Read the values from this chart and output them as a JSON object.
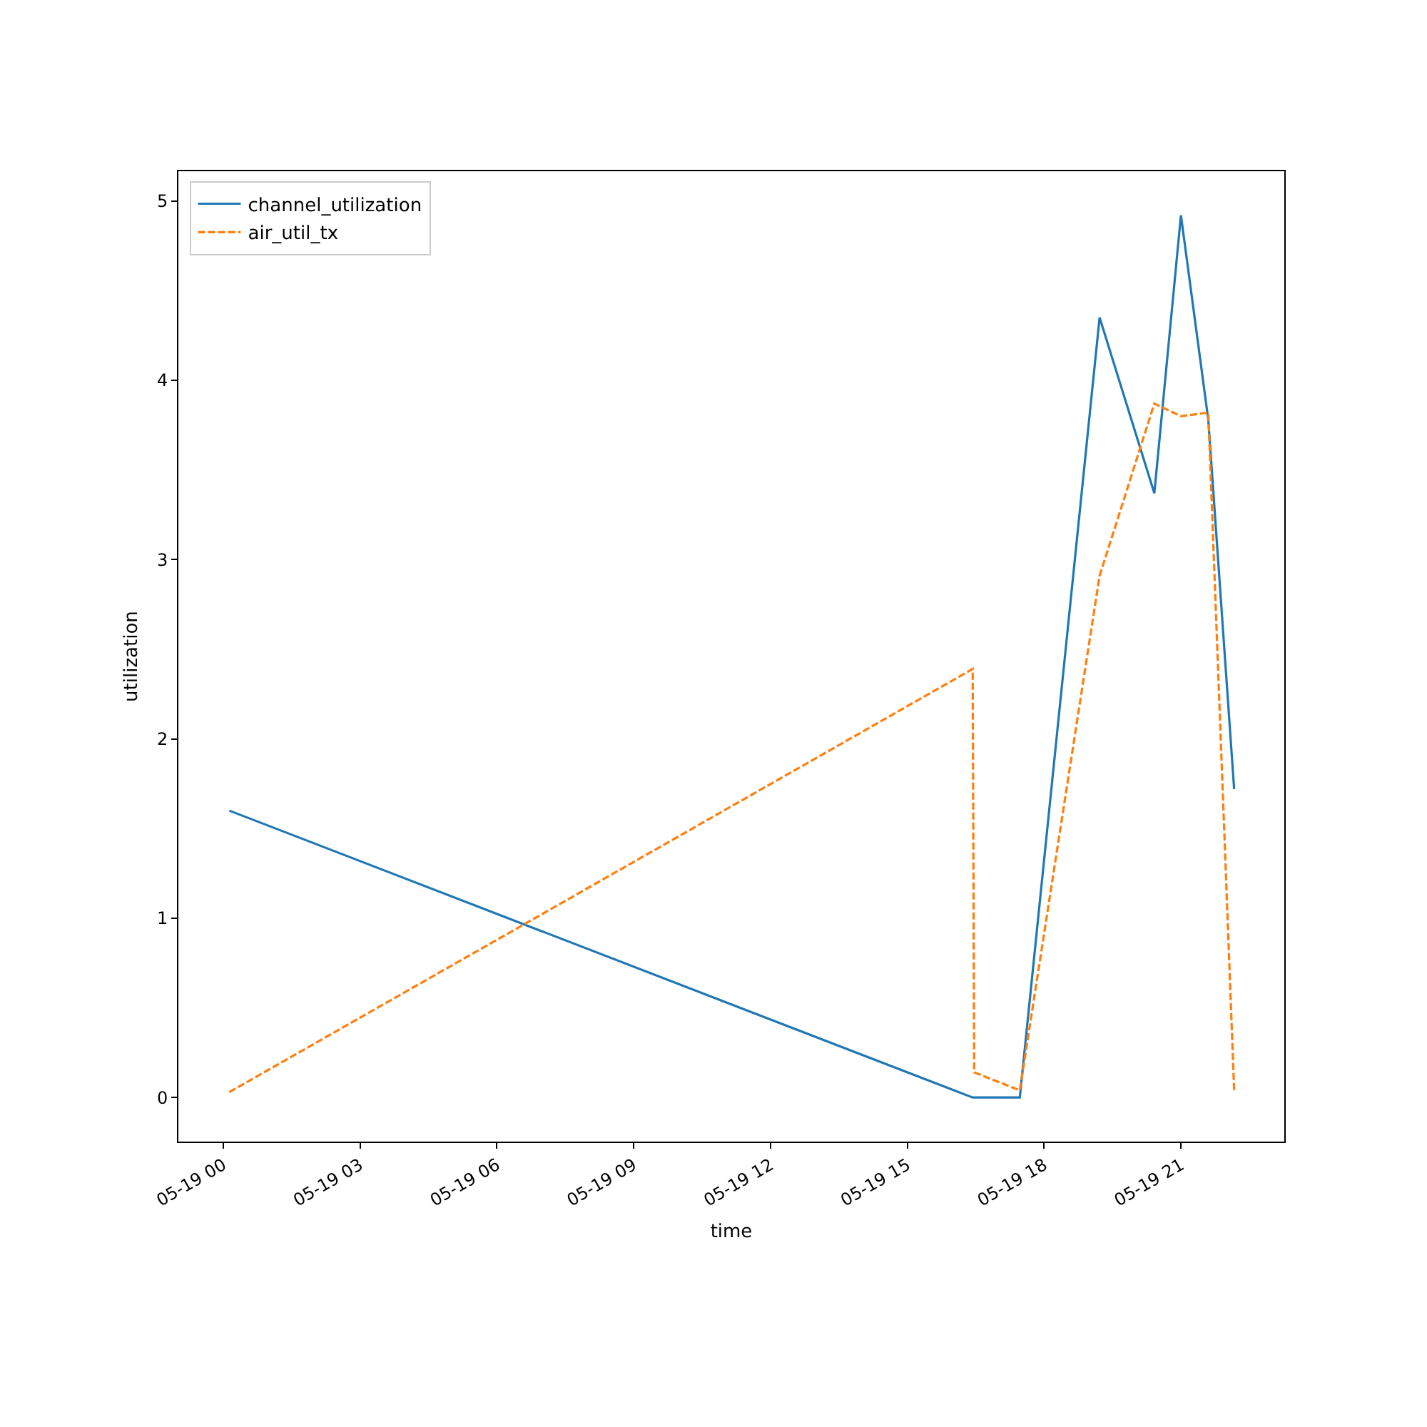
{
  "chart_data": {
    "type": "line",
    "xlabel": "time",
    "ylabel": "utilization",
    "xlim": [
      "--05-18T23:01",
      "--05-19T23:16"
    ],
    "ylim": [
      -0.246,
      5.166
    ],
    "xticks": [
      {
        "value": "--05-19T00:00",
        "label": "05-19 00"
      },
      {
        "value": "--05-19T03:00",
        "label": "05-19 03"
      },
      {
        "value": "--05-19T06:00",
        "label": "05-19 06"
      },
      {
        "value": "--05-19T09:00",
        "label": "05-19 09"
      },
      {
        "value": "--05-19T12:00",
        "label": "05-19 12"
      },
      {
        "value": "--05-19T15:00",
        "label": "05-19 15"
      },
      {
        "value": "--05-19T18:00",
        "label": "05-19 18"
      },
      {
        "value": "--05-19T21:00",
        "label": "05-19 21"
      }
    ],
    "yticks": [
      0,
      1,
      2,
      3,
      4,
      5
    ],
    "legend": "top left",
    "series": [
      {
        "name": "channel_utilization",
        "color": "#1f77b4",
        "line_style": "solid",
        "x": [
          "--05-19T00:08",
          "--05-19T16:26",
          "--05-19T17:28",
          "--05-19T19:13",
          "--05-19T20:25",
          "--05-19T21:00",
          "--05-19T21:36",
          "--05-19T22:10"
        ],
        "values": [
          1.6,
          0.0,
          0.0,
          4.35,
          3.37,
          4.92,
          3.78,
          1.72
        ]
      },
      {
        "name": "air_util_tx",
        "color": "#ff7f0e",
        "line_style": "dashed",
        "x": [
          "--05-19T00:08",
          "--05-19T16:26",
          "--05-19T16:28",
          "--05-19T17:28",
          "--05-19T19:13",
          "--05-19T20:25",
          "--05-19T21:00",
          "--05-19T21:36",
          "--05-19T22:10"
        ],
        "values": [
          0.03,
          2.39,
          0.14,
          0.04,
          2.91,
          3.87,
          3.8,
          3.82,
          0.04
        ]
      }
    ]
  }
}
